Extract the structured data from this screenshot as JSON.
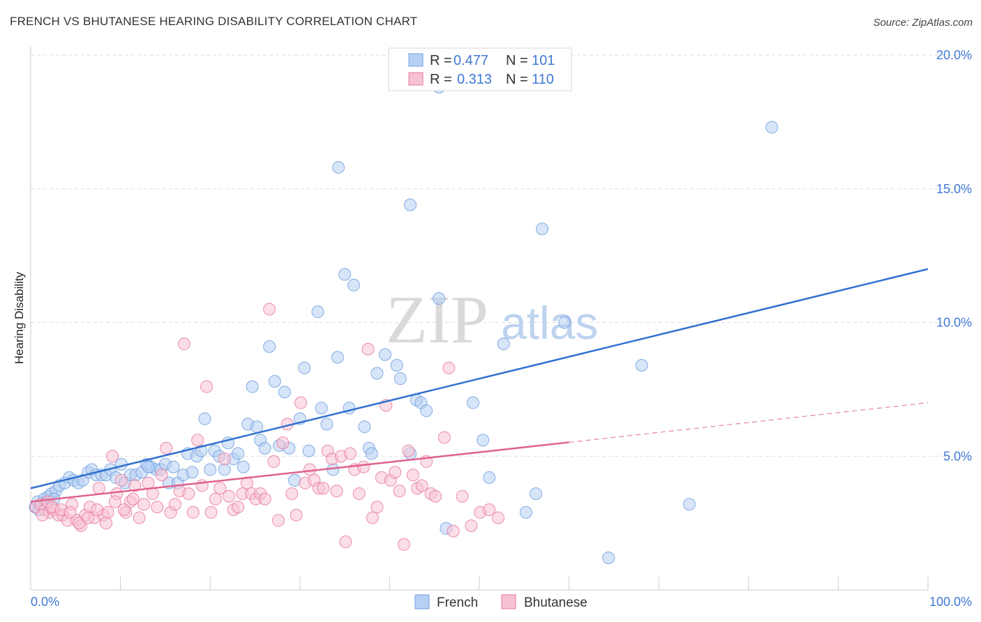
{
  "header": {
    "title": "FRENCH VS BHUTANESE HEARING DISABILITY CORRELATION CHART",
    "source": "Source: ZipAtlas.com"
  },
  "watermark": {
    "part1": "ZIP",
    "part2": "atlas"
  },
  "stats": [
    {
      "r_label": "R =",
      "r_value": "0.477",
      "n_label": "N =",
      "n_value": "101",
      "color": "#6f9fe0",
      "fill": "#b6d0f3"
    },
    {
      "r_label": "R =",
      "r_value": "0.313",
      "n_label": "N =",
      "n_value": "110",
      "color": "#e8799f",
      "fill": "#f7c2d3"
    }
  ],
  "colors": {
    "french_line": "#3070d0",
    "bhutanese_line": "#e0608e",
    "grid": "#dddddd",
    "tick_label": "#3f78d4"
  },
  "chart_data": {
    "type": "scatter",
    "title": "FRENCH VS BHUTANESE HEARING DISABILITY CORRELATION CHART",
    "xlabel": "",
    "ylabel": "Hearing Disability",
    "xlim": [
      0,
      100
    ],
    "ylim": [
      0,
      20
    ],
    "y_ticks": [
      5,
      10,
      15,
      20
    ],
    "y_tick_labels": [
      "5.0%",
      "10.0%",
      "15.0%",
      "20.0%"
    ],
    "x_tick_labels": [
      "0.0%",
      "100.0%"
    ],
    "x_minor_ticks": [
      10,
      20,
      30,
      40,
      50,
      60,
      70,
      80,
      90,
      100
    ],
    "grid": true,
    "legend_position": "bottom-center",
    "series": [
      {
        "name": "French",
        "color": "#6f9fe0",
        "fill": "#b6d0f3",
        "trend": {
          "x0": 0,
          "y0": 3.8,
          "x1": 100,
          "y1": 12.0,
          "dash_from": null
        },
        "points": [
          [
            0.5,
            3.1
          ],
          [
            0.8,
            3.3
          ],
          [
            1.2,
            3.2
          ],
          [
            1.5,
            3.4
          ],
          [
            2.0,
            3.5
          ],
          [
            2.3,
            3.6
          ],
          [
            2.8,
            3.7
          ],
          [
            3.2,
            3.9
          ],
          [
            3.8,
            4.0
          ],
          [
            4.3,
            4.2
          ],
          [
            4.8,
            4.1
          ],
          [
            5.3,
            4.0
          ],
          [
            5.8,
            4.1
          ],
          [
            6.4,
            4.4
          ],
          [
            6.8,
            4.5
          ],
          [
            7.3,
            4.3
          ],
          [
            7.9,
            4.3
          ],
          [
            8.4,
            4.3
          ],
          [
            8.9,
            4.5
          ],
          [
            9.5,
            4.2
          ],
          [
            10.1,
            4.7
          ],
          [
            10.5,
            4.0
          ],
          [
            11.1,
            4.3
          ],
          [
            11.7,
            4.3
          ],
          [
            12.4,
            4.4
          ],
          [
            12.9,
            4.7
          ],
          [
            13.4,
            4.6
          ],
          [
            14.0,
            4.5
          ],
          [
            14.5,
            4.5
          ],
          [
            15.0,
            4.7
          ],
          [
            15.4,
            4.0
          ],
          [
            15.9,
            4.6
          ],
          [
            16.4,
            4.0
          ],
          [
            17.0,
            4.3
          ],
          [
            17.5,
            5.1
          ],
          [
            18.0,
            4.4
          ],
          [
            18.5,
            5.0
          ],
          [
            19.0,
            5.2
          ],
          [
            19.4,
            6.4
          ],
          [
            20.0,
            4.5
          ],
          [
            20.5,
            5.2
          ],
          [
            21.0,
            5.0
          ],
          [
            21.6,
            4.5
          ],
          [
            22.0,
            5.5
          ],
          [
            22.6,
            4.9
          ],
          [
            23.1,
            5.1
          ],
          [
            23.7,
            4.6
          ],
          [
            24.2,
            6.2
          ],
          [
            24.7,
            7.6
          ],
          [
            25.2,
            6.1
          ],
          [
            25.6,
            5.6
          ],
          [
            26.1,
            5.3
          ],
          [
            26.6,
            9.1
          ],
          [
            27.2,
            7.8
          ],
          [
            27.7,
            5.4
          ],
          [
            28.3,
            7.4
          ],
          [
            28.8,
            5.3
          ],
          [
            29.4,
            4.1
          ],
          [
            30.0,
            6.4
          ],
          [
            30.5,
            8.3
          ],
          [
            31.0,
            5.2
          ],
          [
            32.0,
            10.4
          ],
          [
            32.4,
            6.8
          ],
          [
            33.0,
            6.2
          ],
          [
            33.7,
            4.5
          ],
          [
            34.2,
            8.7
          ],
          [
            35.0,
            11.8
          ],
          [
            35.5,
            6.8
          ],
          [
            36.0,
            11.4
          ],
          [
            37.2,
            6.1
          ],
          [
            37.7,
            5.3
          ],
          [
            38.0,
            5.1
          ],
          [
            38.6,
            8.1
          ],
          [
            39.5,
            8.8
          ],
          [
            40.8,
            8.4
          ],
          [
            41.2,
            7.9
          ],
          [
            42.3,
            5.1
          ],
          [
            43.0,
            7.1
          ],
          [
            43.5,
            7.0
          ],
          [
            44.1,
            6.7
          ],
          [
            45.5,
            10.9
          ],
          [
            46.3,
            2.3
          ],
          [
            49.3,
            7.0
          ],
          [
            50.4,
            5.6
          ],
          [
            51.1,
            4.2
          ],
          [
            52.7,
            9.2
          ],
          [
            55.2,
            2.9
          ],
          [
            56.3,
            3.6
          ],
          [
            57.0,
            13.5
          ],
          [
            59.5,
            10.0
          ],
          [
            64.4,
            1.2
          ],
          [
            68.1,
            8.4
          ],
          [
            73.4,
            3.2
          ],
          [
            82.6,
            17.3
          ],
          [
            34.3,
            15.8
          ],
          [
            42.3,
            14.4
          ],
          [
            45.5,
            18.8
          ],
          [
            13.1,
            4.6
          ],
          [
            2.6,
            3.4
          ],
          [
            0.9,
            3.0
          ],
          [
            1.6,
            3.2
          ]
        ]
      },
      {
        "name": "Bhutanese",
        "color": "#e8799f",
        "fill": "#f7c2d3",
        "trend": {
          "x0": 0,
          "y0": 3.3,
          "x1": 100,
          "y1": 7.0,
          "dash_from": 60
        },
        "points": [
          [
            0.6,
            3.1
          ],
          [
            1.1,
            3.2
          ],
          [
            1.6,
            3.0
          ],
          [
            2.1,
            2.9
          ],
          [
            2.6,
            3.0
          ],
          [
            3.1,
            2.8
          ],
          [
            3.6,
            2.8
          ],
          [
            4.1,
            2.6
          ],
          [
            4.6,
            3.2
          ],
          [
            5.1,
            2.6
          ],
          [
            5.6,
            2.4
          ],
          [
            6.1,
            2.8
          ],
          [
            6.6,
            3.1
          ],
          [
            7.1,
            2.7
          ],
          [
            7.6,
            3.8
          ],
          [
            8.1,
            2.8
          ],
          [
            8.6,
            2.9
          ],
          [
            9.1,
            5.0
          ],
          [
            9.6,
            3.6
          ],
          [
            10.1,
            4.1
          ],
          [
            10.6,
            2.9
          ],
          [
            11.1,
            3.3
          ],
          [
            11.6,
            3.9
          ],
          [
            12.1,
            2.7
          ],
          [
            12.6,
            3.2
          ],
          [
            13.1,
            4.0
          ],
          [
            13.6,
            3.6
          ],
          [
            14.1,
            3.1
          ],
          [
            14.6,
            4.3
          ],
          [
            15.1,
            5.3
          ],
          [
            15.6,
            2.9
          ],
          [
            16.1,
            3.2
          ],
          [
            16.6,
            3.7
          ],
          [
            17.1,
            9.2
          ],
          [
            17.6,
            3.6
          ],
          [
            18.1,
            2.9
          ],
          [
            18.6,
            5.6
          ],
          [
            19.1,
            3.9
          ],
          [
            19.6,
            7.6
          ],
          [
            20.1,
            2.9
          ],
          [
            20.6,
            3.4
          ],
          [
            21.1,
            3.8
          ],
          [
            21.6,
            4.9
          ],
          [
            22.1,
            3.5
          ],
          [
            22.6,
            3.0
          ],
          [
            23.1,
            3.1
          ],
          [
            23.6,
            3.6
          ],
          [
            24.1,
            4.0
          ],
          [
            24.6,
            3.6
          ],
          [
            25.1,
            3.4
          ],
          [
            25.6,
            3.6
          ],
          [
            26.1,
            3.4
          ],
          [
            26.6,
            10.5
          ],
          [
            27.1,
            4.8
          ],
          [
            27.6,
            2.6
          ],
          [
            28.1,
            5.5
          ],
          [
            28.6,
            6.2
          ],
          [
            29.1,
            3.6
          ],
          [
            29.6,
            2.8
          ],
          [
            30.1,
            7.0
          ],
          [
            30.6,
            4.0
          ],
          [
            31.1,
            4.5
          ],
          [
            31.6,
            4.1
          ],
          [
            32.1,
            3.8
          ],
          [
            32.6,
            3.8
          ],
          [
            33.1,
            5.2
          ],
          [
            33.6,
            4.9
          ],
          [
            34.1,
            3.7
          ],
          [
            34.6,
            5.0
          ],
          [
            35.1,
            1.8
          ],
          [
            35.6,
            5.1
          ],
          [
            36.1,
            4.5
          ],
          [
            36.6,
            3.6
          ],
          [
            37.1,
            4.6
          ],
          [
            37.6,
            9.0
          ],
          [
            38.1,
            2.7
          ],
          [
            38.6,
            3.1
          ],
          [
            39.1,
            4.2
          ],
          [
            39.6,
            6.9
          ],
          [
            40.1,
            4.1
          ],
          [
            40.6,
            4.4
          ],
          [
            41.1,
            3.7
          ],
          [
            41.6,
            1.7
          ],
          [
            42.1,
            5.2
          ],
          [
            42.6,
            4.3
          ],
          [
            43.1,
            3.8
          ],
          [
            43.6,
            3.9
          ],
          [
            44.1,
            4.8
          ],
          [
            44.6,
            3.6
          ],
          [
            45.1,
            3.5
          ],
          [
            46.1,
            5.7
          ],
          [
            46.6,
            8.3
          ],
          [
            47.1,
            2.2
          ],
          [
            48.1,
            3.5
          ],
          [
            49.1,
            2.4
          ],
          [
            50.1,
            2.9
          ],
          [
            51.1,
            3.0
          ],
          [
            52.1,
            2.7
          ],
          [
            1.3,
            2.8
          ],
          [
            1.9,
            3.3
          ],
          [
            2.4,
            3.1
          ],
          [
            3.4,
            3.0
          ],
          [
            4.4,
            2.9
          ],
          [
            5.4,
            2.5
          ],
          [
            6.4,
            2.7
          ],
          [
            7.4,
            3.0
          ],
          [
            8.4,
            2.5
          ],
          [
            9.4,
            3.3
          ],
          [
            10.4,
            3.0
          ],
          [
            11.4,
            3.4
          ]
        ]
      }
    ]
  }
}
